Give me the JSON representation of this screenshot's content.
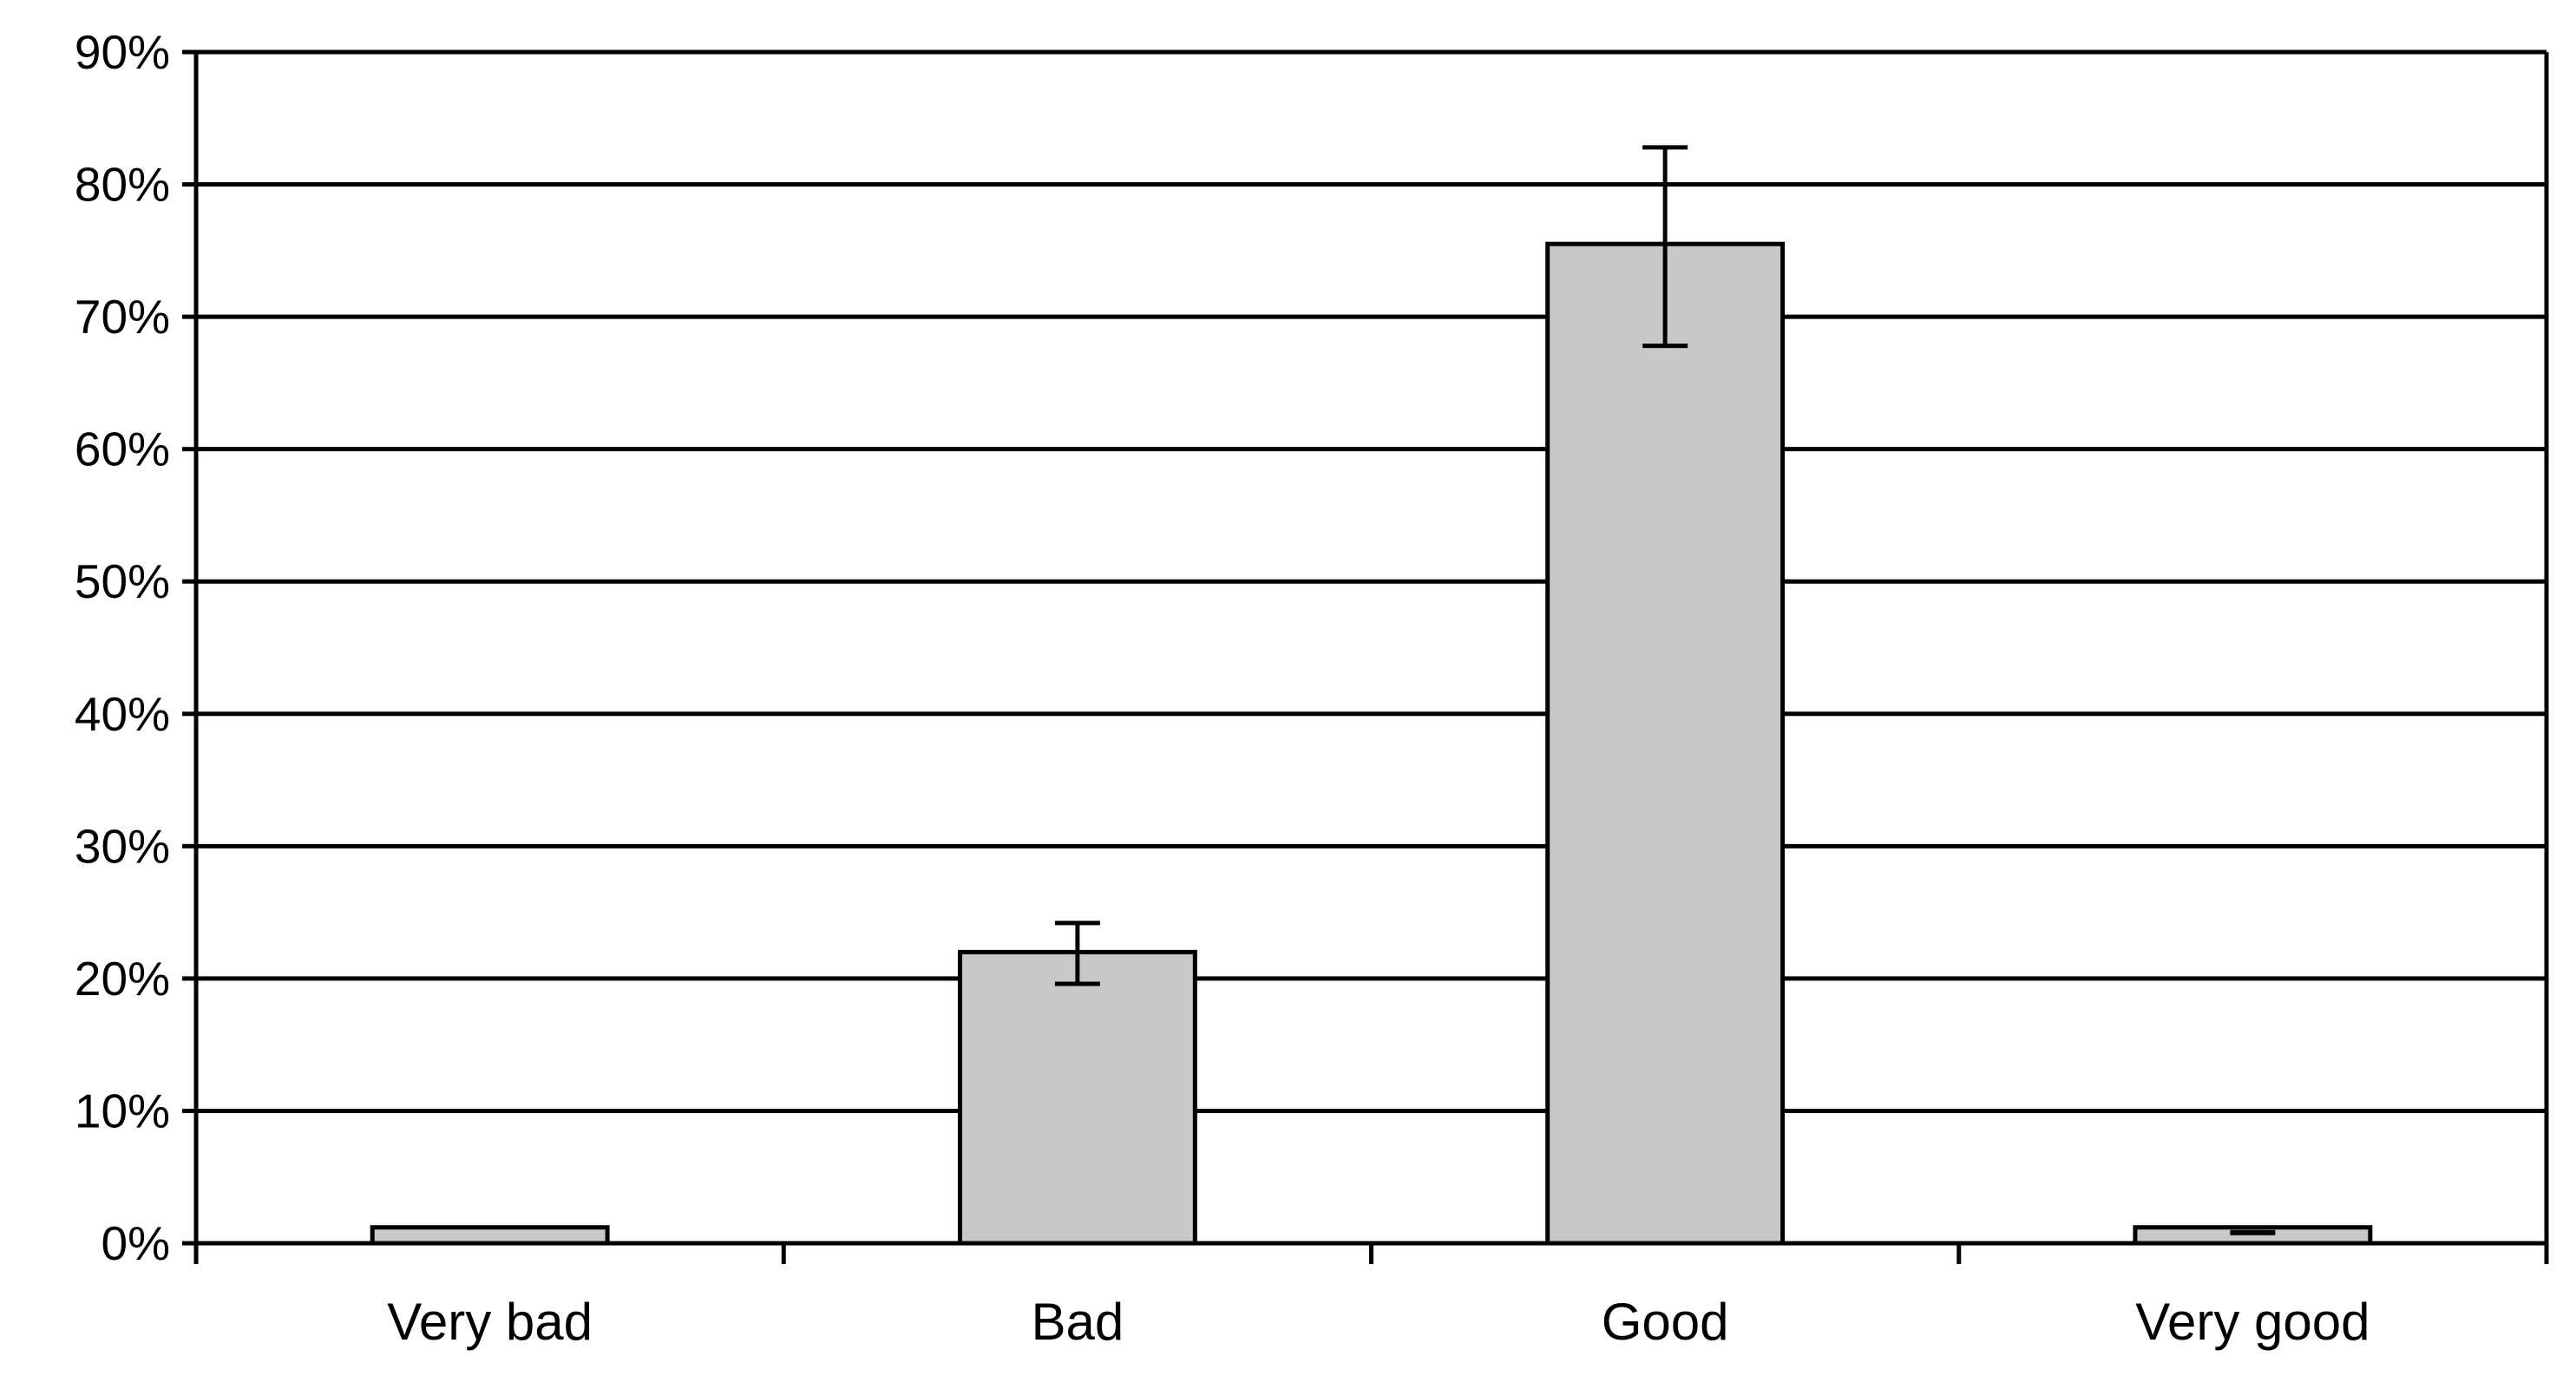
{
  "chart_data": {
    "type": "bar",
    "title": "",
    "xlabel": "",
    "ylabel": "",
    "categories": [
      "Very bad",
      "Bad",
      "Good",
      "Very good"
    ],
    "series": [
      {
        "values": [
          1.2,
          22.0,
          75.5,
          1.2
        ],
        "error_low": [
          1.2,
          19.6,
          67.8,
          0.8
        ],
        "error_high": [
          1.2,
          24.2,
          82.8,
          0.8
        ]
      }
    ],
    "y_unit": "%",
    "ylim": [
      0,
      90
    ],
    "yticks": [
      0,
      10,
      20,
      30,
      40,
      50,
      60,
      70,
      80,
      90
    ],
    "ytick_labels": [
      "0%",
      "10%",
      "20%",
      "30%",
      "40%",
      "50%",
      "60%",
      "70%",
      "80%",
      "90%"
    ],
    "grid": true,
    "legend": "none",
    "colors": {
      "bar_fill": "#c8c8c8",
      "bar_stroke": "#000000",
      "grid": "#000000",
      "axis": "#000000"
    }
  }
}
